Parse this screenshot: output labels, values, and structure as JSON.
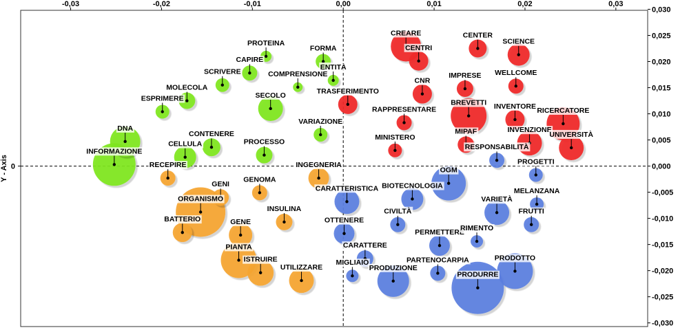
{
  "chart_data": {
    "type": "scatter",
    "xlabel": "",
    "ylabel": "Y - Axis",
    "xlim": [
      -0.0355,
      0.0335
    ],
    "ylim": [
      -0.0307,
      0.0298
    ],
    "x_ticks": [
      {
        "v": -0.03,
        "t": "-0,03"
      },
      {
        "v": -0.02,
        "t": "-0,02"
      },
      {
        "v": -0.01,
        "t": "-0,01"
      },
      {
        "v": 0,
        "t": "0,00"
      },
      {
        "v": 0.01,
        "t": "0,01"
      },
      {
        "v": 0.02,
        "t": "0,02"
      },
      {
        "v": 0.03,
        "t": "0,03"
      }
    ],
    "y_ticks_right": [
      {
        "v": 0.03,
        "t": "0,030"
      },
      {
        "v": 0.025,
        "t": "0,025"
      },
      {
        "v": 0.02,
        "t": "0,020"
      },
      {
        "v": 0.015,
        "t": "0,015"
      },
      {
        "v": 0.01,
        "t": "0,010"
      },
      {
        "v": 0.005,
        "t": "0,005"
      },
      {
        "v": 0,
        "t": "0,000"
      },
      {
        "v": -0.005,
        "t": "-0,005"
      },
      {
        "v": -0.01,
        "t": "-0,010"
      },
      {
        "v": -0.015,
        "t": "-0,015"
      },
      {
        "v": -0.02,
        "t": "-0,020"
      },
      {
        "v": -0.025,
        "t": "-0,025"
      },
      {
        "v": -0.03,
        "t": "-0,030"
      }
    ],
    "y_ticks_left": [
      {
        "v": 0,
        "t": "0"
      }
    ],
    "grid": false,
    "colors": {
      "green": "#7fe61e",
      "orange": "#f5a530",
      "red": "#f02a2a",
      "blue": "#5b7fe0"
    },
    "points": [
      {
        "label": "PROTEINA",
        "x": -0.0085,
        "y": 0.021,
        "size": 8,
        "color": "green"
      },
      {
        "label": "CAPIRE",
        "x": -0.0103,
        "y": 0.0178,
        "size": 11,
        "color": "green"
      },
      {
        "label": "FORMA",
        "x": -0.0022,
        "y": 0.02,
        "size": 11,
        "color": "green"
      },
      {
        "label": "ENTITÀ",
        "x": -0.0011,
        "y": 0.0164,
        "size": 8,
        "color": "green"
      },
      {
        "label": "SCRIVERE",
        "x": -0.0133,
        "y": 0.0155,
        "size": 10,
        "color": "green"
      },
      {
        "label": "COMPRENSIONE",
        "x": -0.005,
        "y": 0.0151,
        "size": 7,
        "color": "green"
      },
      {
        "label": "MOLECOLA",
        "x": -0.0172,
        "y": 0.0125,
        "size": 12,
        "color": "green"
      },
      {
        "label": "ESPRIMERE",
        "x": -0.0199,
        "y": 0.0104,
        "size": 10,
        "color": "green"
      },
      {
        "label": "SECOLO",
        "x": -0.008,
        "y": 0.011,
        "size": 18,
        "color": "green"
      },
      {
        "label": "VARIAZIONE",
        "x": -0.0025,
        "y": 0.006,
        "size": 10,
        "color": "green"
      },
      {
        "label": "DNA",
        "x": -0.024,
        "y": 0.0047,
        "size": 22,
        "color": "green"
      },
      {
        "label": "CONTENERE",
        "x": -0.0145,
        "y": 0.0036,
        "size": 13,
        "color": "green"
      },
      {
        "label": "CELLULA",
        "x": -0.0174,
        "y": 0.0017,
        "size": 16,
        "color": "green"
      },
      {
        "label": "PROCESSO",
        "x": -0.0087,
        "y": 0.0021,
        "size": 12,
        "color": "green"
      },
      {
        "label": "INFORMAZIONE",
        "x": -0.0252,
        "y": 0.0003,
        "size": 31,
        "color": "green"
      },
      {
        "label": "RECEPIRE",
        "x": -0.0193,
        "y": -0.0023,
        "size": 11,
        "color": "orange"
      },
      {
        "label": "INGEGNERIA",
        "x": -0.0027,
        "y": -0.0023,
        "size": 15,
        "color": "orange"
      },
      {
        "label": "GENOMA",
        "x": -0.0092,
        "y": -0.0051,
        "size": 11,
        "color": "orange"
      },
      {
        "label": "GENI",
        "x": -0.0135,
        "y": -0.006,
        "size": 12,
        "color": "orange"
      },
      {
        "label": "ORGANISMO",
        "x": -0.0157,
        "y": -0.0088,
        "size": 36,
        "color": "orange"
      },
      {
        "label": "INSULINA",
        "x": -0.0065,
        "y": -0.0107,
        "size": 12,
        "color": "orange"
      },
      {
        "label": "BATTERIO",
        "x": -0.0177,
        "y": -0.0127,
        "size": 14,
        "color": "orange"
      },
      {
        "label": "GENE",
        "x": -0.0113,
        "y": -0.0132,
        "size": 17,
        "color": "orange"
      },
      {
        "label": "PIANTA",
        "x": -0.0115,
        "y": -0.018,
        "size": 26,
        "color": "orange"
      },
      {
        "label": "ISTRUIRE",
        "x": -0.0091,
        "y": -0.0204,
        "size": 19,
        "color": "orange"
      },
      {
        "label": "UTILIZZARE",
        "x": -0.0046,
        "y": -0.0219,
        "size": 18,
        "color": "orange"
      },
      {
        "label": "CREARE",
        "x": 0.0069,
        "y": 0.0229,
        "size": 22,
        "color": "red"
      },
      {
        "label": "CENTRI",
        "x": 0.0083,
        "y": 0.0201,
        "size": 14,
        "color": "red"
      },
      {
        "label": "CENTER",
        "x": 0.0148,
        "y": 0.0225,
        "size": 13,
        "color": "red"
      },
      {
        "label": "SCIENCE",
        "x": 0.0193,
        "y": 0.0213,
        "size": 16,
        "color": "red"
      },
      {
        "label": "CNR",
        "x": 0.0087,
        "y": 0.0138,
        "size": 14,
        "color": "red"
      },
      {
        "label": "IMPRESE",
        "x": 0.0134,
        "y": 0.0148,
        "size": 12,
        "color": "red"
      },
      {
        "label": "WELLCOME",
        "x": 0.019,
        "y": 0.0153,
        "size": 11,
        "color": "red"
      },
      {
        "label": "TRASFERIMENTO",
        "x": 0.0005,
        "y": 0.0118,
        "size": 14,
        "color": "red"
      },
      {
        "label": "BREVETTI",
        "x": 0.0138,
        "y": 0.0096,
        "size": 26,
        "color": "red"
      },
      {
        "label": "INVENTORE",
        "x": 0.0189,
        "y": 0.0089,
        "size": 14,
        "color": "red"
      },
      {
        "label": "RICERCATORE",
        "x": 0.0242,
        "y": 0.0081,
        "size": 24,
        "color": "red"
      },
      {
        "label": "RAPPRESENTARE",
        "x": 0.0067,
        "y": 0.0083,
        "size": 11,
        "color": "red"
      },
      {
        "label": "MIPAF",
        "x": 0.0135,
        "y": 0.0041,
        "size": 12,
        "color": "red"
      },
      {
        "label": "INVENZIONE",
        "x": 0.0205,
        "y": 0.0044,
        "size": 18,
        "color": "red"
      },
      {
        "label": "UNIVERSITÀ",
        "x": 0.0251,
        "y": 0.0035,
        "size": 18,
        "color": "red"
      },
      {
        "label": "MINISTERO",
        "x": 0.0057,
        "y": 0.003,
        "size": 10,
        "color": "red"
      },
      {
        "label": "RESPONSABILITÀ",
        "x": 0.0169,
        "y": 0.0011,
        "size": 11,
        "color": "blue"
      },
      {
        "label": "PROGETTI",
        "x": 0.0212,
        "y": -0.0017,
        "size": 10,
        "color": "blue"
      },
      {
        "label": "OGM",
        "x": 0.0116,
        "y": -0.0033,
        "size": 25,
        "color": "blue"
      },
      {
        "label": "BIOTECNOLOGIA",
        "x": 0.0076,
        "y": -0.0063,
        "size": 16,
        "color": "blue"
      },
      {
        "label": "CARATTERISTICA",
        "x": 0.0004,
        "y": -0.0068,
        "size": 18,
        "color": "blue"
      },
      {
        "label": "MELANZANA",
        "x": 0.0213,
        "y": -0.0073,
        "size": 10,
        "color": "blue"
      },
      {
        "label": "VARIETÀ",
        "x": 0.0169,
        "y": -0.0089,
        "size": 18,
        "color": "blue"
      },
      {
        "label": "CIVILTÀ",
        "x": 0.006,
        "y": -0.0112,
        "size": 11,
        "color": "blue"
      },
      {
        "label": "OTTENERE",
        "x": 0.0001,
        "y": -0.0129,
        "size": 15,
        "color": "blue"
      },
      {
        "label": "FRUTTI",
        "x": 0.0207,
        "y": -0.0112,
        "size": 11,
        "color": "blue"
      },
      {
        "label": "PERMETTERE",
        "x": 0.0106,
        "y": -0.0152,
        "size": 15,
        "color": "blue"
      },
      {
        "label": "RIMENTO",
        "x": 0.0147,
        "y": -0.0144,
        "size": 9,
        "color": "blue"
      },
      {
        "label": "CARATTERE",
        "x": 0.0024,
        "y": -0.0177,
        "size": 12,
        "color": "blue"
      },
      {
        "label": "PRODOTTO",
        "x": 0.0189,
        "y": -0.0201,
        "size": 26,
        "color": "blue"
      },
      {
        "label": "PARTENOCARPIA",
        "x": 0.0104,
        "y": -0.0205,
        "size": 11,
        "color": "blue"
      },
      {
        "label": "MIGLIAIO",
        "x": 0.001,
        "y": -0.021,
        "size": 9,
        "color": "blue"
      },
      {
        "label": "PRODUZIONE",
        "x": 0.0055,
        "y": -0.022,
        "size": 23,
        "color": "blue"
      },
      {
        "label": "PRODURRE",
        "x": 0.0148,
        "y": -0.0233,
        "size": 38,
        "color": "blue"
      }
    ]
  }
}
